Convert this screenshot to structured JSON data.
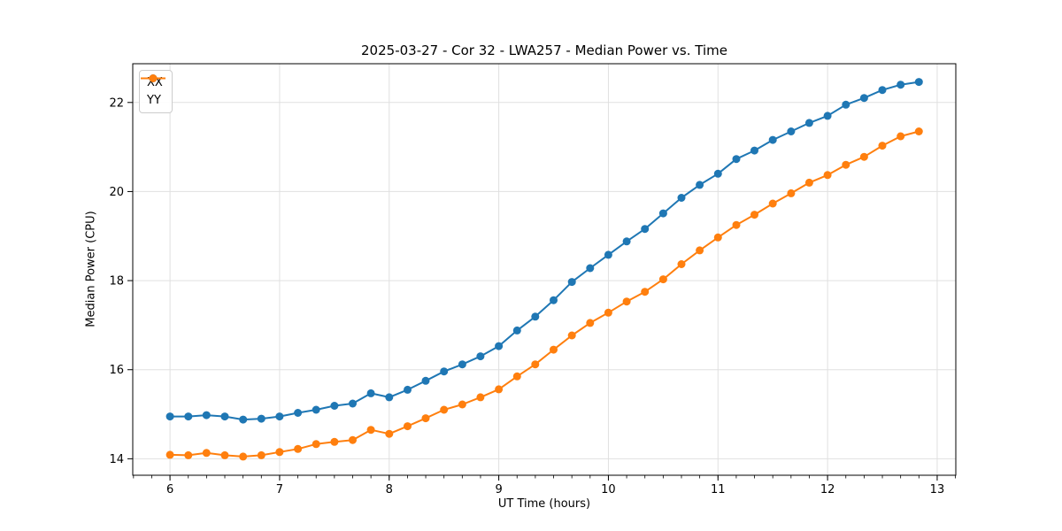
{
  "chart_data": {
    "type": "line",
    "title": "2025-03-27 - Cor 32 - LWA257 - Median Power vs. Time",
    "xlabel": "UT Time (hours)",
    "ylabel": "Median Power (CPU)",
    "xlim": [
      5.66,
      13.17
    ],
    "ylim": [
      13.63,
      22.87
    ],
    "xticks": [
      6,
      7,
      8,
      9,
      10,
      11,
      12,
      13
    ],
    "yticks": [
      14,
      16,
      18,
      20,
      22
    ],
    "x_minor_tick_step": 0.1666667,
    "grid": true,
    "grid_color": "#e0e0e0",
    "legend_position": "upper-left",
    "marker": "circle",
    "x": [
      6.0,
      6.167,
      6.333,
      6.5,
      6.667,
      6.833,
      7.0,
      7.167,
      7.333,
      7.5,
      7.667,
      7.833,
      8.0,
      8.167,
      8.333,
      8.5,
      8.667,
      8.833,
      9.0,
      9.167,
      9.333,
      9.5,
      9.667,
      9.833,
      10.0,
      10.167,
      10.333,
      10.5,
      10.667,
      10.833,
      11.0,
      11.167,
      11.333,
      11.5,
      11.667,
      11.833,
      12.0,
      12.167,
      12.333,
      12.5,
      12.667,
      12.833
    ],
    "series": [
      {
        "name": "XX",
        "color": "#1f77b4",
        "values": [
          14.95,
          14.95,
          14.98,
          14.95,
          14.88,
          14.9,
          14.95,
          15.03,
          15.1,
          15.19,
          15.24,
          15.47,
          15.38,
          15.55,
          15.75,
          15.96,
          16.12,
          16.3,
          16.53,
          16.88,
          17.19,
          17.56,
          17.97,
          18.28,
          18.58,
          18.88,
          19.16,
          19.51,
          19.86,
          20.15,
          20.4,
          20.73,
          20.92,
          21.16,
          21.35,
          21.54,
          21.7,
          21.95,
          22.1,
          22.28,
          22.4,
          22.46
        ]
      },
      {
        "name": "YY",
        "color": "#ff7f0e",
        "values": [
          14.09,
          14.08,
          14.13,
          14.08,
          14.05,
          14.08,
          14.15,
          14.22,
          14.33,
          14.38,
          14.42,
          14.65,
          14.56,
          14.73,
          14.91,
          15.1,
          15.22,
          15.38,
          15.56,
          15.85,
          16.12,
          16.45,
          16.77,
          17.05,
          17.28,
          17.53,
          17.75,
          18.03,
          18.37,
          18.68,
          18.97,
          19.25,
          19.48,
          19.73,
          19.96,
          20.2,
          20.37,
          20.6,
          20.78,
          21.03,
          21.24,
          21.35
        ]
      }
    ]
  }
}
